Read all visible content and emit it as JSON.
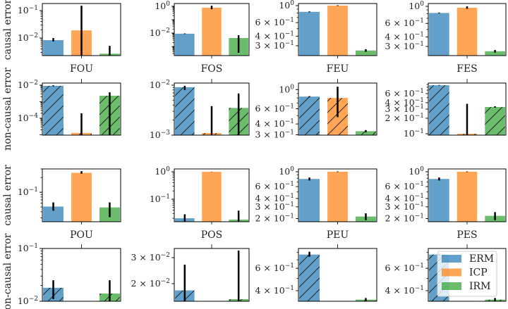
{
  "colors": {
    "ERM": "#1f77b4",
    "ICP": "#ff7f0e",
    "IRM": "#2ca02c"
  },
  "legend": {
    "entries": [
      "ERM",
      "ICP",
      "IRM"
    ],
    "placement": "upper-right of bottom-right panel"
  },
  "chart_data": [
    {
      "type": "bar",
      "title": "",
      "xlabel": "FOU",
      "ylabel": "causal error",
      "hatched": false,
      "yscale": "log",
      "ylim": [
        0.0023,
        0.18
      ],
      "yticks": [
        {
          "value": 0.1,
          "label": "10^{−1}"
        },
        {
          "value": 0.01,
          "label": "10^{−2}"
        }
      ],
      "categories": [
        "ERM",
        "ICP",
        "IRM"
      ],
      "values": [
        0.0084,
        0.019,
        0.0027
      ],
      "errors": [
        [
          0.0075,
          0.01
        ],
        [
          0.0023,
          0.15
        ],
        [
          0.0023,
          0.0052
        ]
      ]
    },
    {
      "type": "bar",
      "title": "",
      "xlabel": "FOS",
      "ylabel": "",
      "hatched": false,
      "yscale": "log",
      "ylim": [
        0.00021,
        1.6
      ],
      "yticks": [
        {
          "value": 1,
          "label": "10^{0}"
        },
        {
          "value": 0.01,
          "label": "10^{−2}"
        }
      ],
      "categories": [
        "ERM",
        "ICP",
        "IRM"
      ],
      "values": [
        0.009,
        0.78,
        0.0043
      ],
      "errors": [
        [
          0.0085,
          0.0095
        ],
        [
          0.6,
          1.1
        ],
        [
          0.00034,
          0.0069
        ]
      ]
    },
    {
      "type": "bar",
      "title": "",
      "xlabel": "FEU",
      "ylabel": "",
      "hatched": false,
      "yscale": "log",
      "ylim": [
        0.223,
        1.065
      ],
      "yticks": [
        {
          "value": 1,
          "label": "10^{0}"
        },
        {
          "value": 0.6,
          "label": "6 × 10^{−1}"
        },
        {
          "value": 0.4,
          "label": "4 × 10^{−1}"
        },
        {
          "value": 0.3,
          "label": "3 × 10^{−1}"
        }
      ],
      "categories": [
        "ERM",
        "ICP",
        "IRM"
      ],
      "values": [
        0.83,
        1.0,
        0.26
      ],
      "errors": [
        [
          0.82,
          0.84
        ],
        [
          0.99,
          1.01
        ],
        [
          0.25,
          0.27
        ]
      ]
    },
    {
      "type": "bar",
      "title": "",
      "xlabel": "FES",
      "ylabel": "",
      "hatched": false,
      "yscale": "log",
      "ylim": [
        0.228,
        1.09
      ],
      "yticks": [
        {
          "value": 1,
          "label": "10^{0}"
        },
        {
          "value": 0.6,
          "label": "6 × 10^{−1}"
        },
        {
          "value": 0.4,
          "label": "4 × 10^{−1}"
        },
        {
          "value": 0.3,
          "label": "3 × 10^{−1}"
        }
      ],
      "categories": [
        "ERM",
        "ICP",
        "IRM"
      ],
      "values": [
        0.82,
        0.96,
        0.26
      ],
      "errors": [
        [
          0.81,
          0.83
        ],
        [
          0.93,
          1.0
        ],
        [
          0.25,
          0.27
        ]
      ]
    },
    {
      "type": "bar",
      "title": "",
      "xlabel": "",
      "ylabel": "non-causal error",
      "hatched": true,
      "yscale": "log",
      "ylim": [
        9.5e-06,
        0.0134
      ],
      "yticks": [
        {
          "value": 0.01,
          "label": "10^{−2}"
        },
        {
          "value": 0.0001,
          "label": "10^{−4}"
        }
      ],
      "categories": [
        "ERM",
        "ICP",
        "IRM"
      ],
      "values": [
        0.0091,
        1.3e-05,
        0.0023
      ],
      "errors": [
        [
          0.0085,
          0.0098
        ],
        [
          9.5e-06,
          0.0002
        ],
        [
          9.5e-06,
          0.0037
        ]
      ]
    },
    {
      "type": "bar",
      "title": "",
      "xlabel": "",
      "ylabel": "",
      "hatched": true,
      "yscale": "log",
      "ylim": [
        0.001,
        0.011
      ],
      "yticks": [
        {
          "value": 0.01,
          "label": "10^{−2}"
        },
        {
          "value": 0.001,
          "label": "10^{−3}"
        }
      ],
      "categories": [
        "ERM",
        "ICP",
        "IRM"
      ],
      "values": [
        0.0091,
        0.0011,
        0.0035
      ],
      "errors": [
        [
          0.008,
          0.0097
        ],
        [
          0.001,
          0.0038
        ],
        [
          0.001,
          0.0068
        ]
      ]
    },
    {
      "type": "bar",
      "title": "",
      "xlabel": "",
      "ylabel": "",
      "hatched": true,
      "yscale": "log",
      "ylim": [
        0.297,
        1.19
      ],
      "yticks": [
        {
          "value": 1,
          "label": "10^{0}"
        },
        {
          "value": 0.6,
          "label": "6 × 10^{−1}"
        },
        {
          "value": 0.4,
          "label": "4 × 10^{−1}"
        },
        {
          "value": 0.3,
          "label": "3 × 10^{−1}"
        }
      ],
      "categories": [
        "ERM",
        "ICP",
        "IRM"
      ],
      "values": [
        0.83,
        0.8,
        0.33
      ],
      "errors": [
        [
          0.82,
          0.84
        ],
        [
          0.48,
          1.08
        ],
        [
          0.32,
          0.34
        ]
      ]
    },
    {
      "type": "bar",
      "title": "",
      "xlabel": "",
      "ylabel": "",
      "hatched": true,
      "yscale": "log",
      "ylim": [
        0.094,
        0.96
      ],
      "yticks": [
        {
          "value": 0.6,
          "label": "6 × 10^{−1}"
        },
        {
          "value": 0.4,
          "label": "4 × 10^{−1}"
        },
        {
          "value": 0.3,
          "label": "3 × 10^{−1}"
        },
        {
          "value": 0.2,
          "label": "2 × 10^{−1}"
        },
        {
          "value": 0.1,
          "label": "10^{−1}"
        }
      ],
      "categories": [
        "ERM",
        "ICP",
        "IRM"
      ],
      "values": [
        0.87,
        0.1,
        0.33
      ],
      "errors": [
        [
          0.86,
          0.88
        ],
        [
          0.094,
          0.38
        ],
        [
          0.32,
          0.34
        ]
      ]
    },
    {
      "type": "bar",
      "title": "",
      "xlabel": "POU",
      "ylabel": "causal error",
      "hatched": false,
      "yscale": "log",
      "ylim": [
        0.025,
        0.3
      ],
      "yticks": [
        {
          "value": 0.1,
          "label": "10^{−1}"
        }
      ],
      "categories": [
        "ERM",
        "ICP",
        "IRM"
      ],
      "values": [
        0.051,
        0.25,
        0.049
      ],
      "errors": [
        [
          0.042,
          0.062
        ],
        [
          0.24,
          0.27
        ],
        [
          0.031,
          0.062
        ]
      ]
    },
    {
      "type": "bar",
      "title": "",
      "xlabel": "POS",
      "ylabel": "",
      "hatched": false,
      "yscale": "log",
      "ylim": [
        0.015,
        1.27
      ],
      "yticks": [
        {
          "value": 1,
          "label": "10^{0}"
        },
        {
          "value": 0.1,
          "label": "10^{−1}"
        }
      ],
      "categories": [
        "ERM",
        "ICP",
        "IRM"
      ],
      "values": [
        0.02,
        1.0,
        0.018
      ],
      "errors": [
        [
          0.015,
          0.028
        ],
        [
          0.99,
          1.01
        ],
        [
          0.015,
          0.038
        ]
      ]
    },
    {
      "type": "bar",
      "title": "",
      "xlabel": "PEU",
      "ylabel": "",
      "hatched": false,
      "yscale": "log",
      "ylim": [
        0.18,
        1.1
      ],
      "yticks": [
        {
          "value": 1,
          "label": "10^{0}"
        },
        {
          "value": 0.6,
          "label": "6 × 10^{−1}"
        },
        {
          "value": 0.4,
          "label": "4 × 10^{−1}"
        },
        {
          "value": 0.3,
          "label": "3 × 10^{−1}"
        },
        {
          "value": 0.2,
          "label": "2 × 10^{−1}"
        }
      ],
      "categories": [
        "ERM",
        "ICP",
        "IRM"
      ],
      "values": [
        0.78,
        1.0,
        0.215
      ],
      "errors": [
        [
          0.74,
          0.82
        ],
        [
          0.99,
          1.01
        ],
        [
          0.19,
          0.24
        ]
      ]
    },
    {
      "type": "bar",
      "title": "",
      "xlabel": "PES",
      "ylabel": "",
      "hatched": false,
      "yscale": "log",
      "ylim": [
        0.18,
        1.1
      ],
      "yticks": [
        {
          "value": 1,
          "label": "10^{0}"
        },
        {
          "value": 0.6,
          "label": "6 × 10^{−1}"
        },
        {
          "value": 0.4,
          "label": "4 × 10^{−1}"
        },
        {
          "value": 0.3,
          "label": "3 × 10^{−1}"
        },
        {
          "value": 0.2,
          "label": "2 × 10^{−1}"
        }
      ],
      "categories": [
        "ERM",
        "ICP",
        "IRM"
      ],
      "values": [
        0.78,
        1.0,
        0.22
      ],
      "errors": [
        [
          0.74,
          0.82
        ],
        [
          0.99,
          1.01
        ],
        [
          0.19,
          0.25
        ]
      ]
    },
    {
      "type": "bar",
      "title": "",
      "xlabel": "",
      "ylabel": "non-causal error",
      "hatched": true,
      "yscale": "log",
      "ylim": [
        0.01,
        0.1
      ],
      "yticks": [
        {
          "value": 0.1,
          "label": "10^{−1}"
        },
        {
          "value": 0.01,
          "label": "10^{−2}"
        }
      ],
      "categories": [
        "ERM",
        "ICP",
        "IRM"
      ],
      "values": [
        0.018,
        null,
        0.014
      ],
      "errors": [
        [
          0.011,
          0.025
        ],
        null,
        [
          0.01,
          0.025
        ]
      ]
    },
    {
      "type": "bar",
      "title": "",
      "xlabel": "",
      "ylabel": "",
      "hatched": true,
      "yscale": "log",
      "ylim": [
        0.0152,
        0.0346
      ],
      "yticks": [
        {
          "value": 0.03,
          "label": "3 × 10^{−2}"
        },
        {
          "value": 0.02,
          "label": "2 × 10^{−2}"
        }
      ],
      "categories": [
        "ERM",
        "ICP",
        "IRM"
      ],
      "values": [
        0.018,
        null,
        0.0157
      ],
      "errors": [
        [
          0.0152,
          0.0269
        ],
        null,
        [
          0.0152,
          0.0335
        ]
      ]
    },
    {
      "type": "bar",
      "title": "",
      "xlabel": "",
      "ylabel": "",
      "hatched": true,
      "yscale": "log",
      "ylim": [
        0.33,
        0.86
      ],
      "yticks": [
        {
          "value": 0.6,
          "label": "6 × 10^{−1}"
        },
        {
          "value": 0.4,
          "label": "4 × 10^{−1}"
        }
      ],
      "categories": [
        "ERM",
        "ICP",
        "IRM"
      ],
      "values": [
        0.77,
        null,
        0.34
      ],
      "errors": [
        [
          0.74,
          0.81
        ],
        null,
        [
          0.33,
          0.35
        ]
      ]
    },
    {
      "type": "bar",
      "title": "",
      "xlabel": "",
      "ylabel": "",
      "hatched": true,
      "yscale": "log",
      "ylim": [
        0.33,
        0.86
      ],
      "yticks": [
        {
          "value": 0.6,
          "label": "6 × 10^{−1}"
        },
        {
          "value": 0.4,
          "label": "4 × 10^{−1}"
        }
      ],
      "categories": [
        "ERM",
        "ICP",
        "IRM"
      ],
      "values": [
        0.77,
        null,
        0.34
      ],
      "errors": [
        [
          0.76,
          0.78
        ],
        null,
        [
          0.33,
          0.35
        ]
      ]
    }
  ]
}
